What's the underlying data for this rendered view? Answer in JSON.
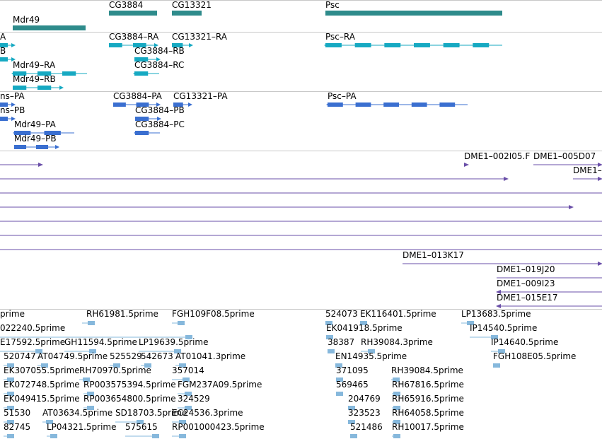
{
  "colors": {
    "gene": "#2e8b8b",
    "mrna_flybase": "#16a9c2",
    "mrna_refseq": "#3a6fd0",
    "bac": "#6a4fa8",
    "est": "#86b8dc",
    "divider": "#c8c8c8"
  },
  "tracks": {
    "genes": {
      "features": [
        {
          "label": "CG3884",
          "icon": "box-glyph"
        },
        {
          "label": "CG13321",
          "icon": "box-glyph"
        },
        {
          "label": "Mdr49",
          "icon": "box-glyph"
        },
        {
          "label": "Psc",
          "icon": "box-glyph"
        }
      ]
    },
    "flybase_transcripts": {
      "features": [
        {
          "label": "A",
          "icon": "transcript-glyph"
        },
        {
          "label": "CG3884–RA",
          "icon": "transcript-glyph"
        },
        {
          "label": "CG13321–RA",
          "icon": "transcript-glyph"
        },
        {
          "label": "Psc–RA",
          "icon": "transcript-glyph"
        },
        {
          "label": "B",
          "icon": "transcript-glyph"
        },
        {
          "label": "CG3884–RB",
          "icon": "transcript-glyph"
        },
        {
          "label": "Mdr49–RA",
          "icon": "transcript-glyph"
        },
        {
          "label": "CG3884–RC",
          "icon": "transcript-glyph"
        },
        {
          "label": "Mdr49–RB",
          "icon": "transcript-glyph"
        }
      ]
    },
    "refseq_transcripts": {
      "features": [
        {
          "label": "ns–PA",
          "icon": "transcript-glyph"
        },
        {
          "label": "CG3884–PA",
          "icon": "transcript-glyph"
        },
        {
          "label": "CG13321–PA",
          "icon": "transcript-glyph"
        },
        {
          "label": "Psc–PA",
          "icon": "transcript-glyph"
        },
        {
          "label": "ns–PB",
          "icon": "transcript-glyph"
        },
        {
          "label": "CG3884–PB",
          "icon": "transcript-glyph"
        },
        {
          "label": "Mdr49–PA",
          "icon": "transcript-glyph"
        },
        {
          "label": "CG3884–PC",
          "icon": "transcript-glyph"
        },
        {
          "label": "Mdr49–PB",
          "icon": "transcript-glyph"
        }
      ]
    },
    "bac_clones": {
      "features": [
        {
          "label": "",
          "icon": "arrow-right-glyph"
        },
        {
          "label": "DME1–002I05.F",
          "icon": "arrow-right-glyph"
        },
        {
          "label": "DME1–005D07",
          "icon": "arrow-right-glyph"
        },
        {
          "label": "",
          "icon": "arrow-right-glyph"
        },
        {
          "label": "DME1–",
          "icon": "arrow-right-glyph"
        },
        {
          "label": "",
          "icon": "line-glyph"
        },
        {
          "label": "",
          "icon": "arrow-right-glyph"
        },
        {
          "label": "",
          "icon": "line-glyph"
        },
        {
          "label": "",
          "icon": "line-glyph"
        },
        {
          "label": "",
          "icon": "line-glyph"
        },
        {
          "label": "DME1–013K17",
          "icon": "arrow-right-glyph"
        },
        {
          "label": "DME1–019J20",
          "icon": "line-glyph"
        },
        {
          "label": "DME1–009I23",
          "icon": "arrow-left-glyph"
        },
        {
          "label": "DME1–015E17",
          "icon": "arrow-left-glyph"
        }
      ]
    },
    "est_clones": {
      "features": [
        {
          "label": "prime",
          "icon": "est-glyph"
        },
        {
          "label": "RH61981.5prime",
          "icon": "est-glyph"
        },
        {
          "label": "FGH109F08.5prime",
          "icon": "est-glyph"
        },
        {
          "label": "524073",
          "icon": "est-glyph"
        },
        {
          "label": "EK116401.5prime",
          "icon": "est-glyph"
        },
        {
          "label": "LP13683.5prime",
          "icon": "est-glyph"
        },
        {
          "label": "022240.5prime",
          "icon": "est-glyph"
        },
        {
          "label": "EK041918.5prime",
          "icon": "est-glyph"
        },
        {
          "label": "IP14540.5prime",
          "icon": "est-glyph"
        },
        {
          "label": "E17592.5prime",
          "icon": "est-glyph"
        },
        {
          "label": "GH11594.5prime",
          "icon": "est-glyph"
        },
        {
          "label": "LP19639.5prime",
          "icon": "est-glyph"
        },
        {
          "label": "38387",
          "icon": "est-glyph"
        },
        {
          "label": "RH39084.3prime",
          "icon": "est-glyph"
        },
        {
          "label": "IP14640.5prime",
          "icon": "est-glyph"
        },
        {
          "label": "520747",
          "icon": "est-glyph"
        },
        {
          "label": "AT04749.5prime",
          "icon": "est-glyph"
        },
        {
          "label": "525529",
          "icon": "est-glyph"
        },
        {
          "label": "542673",
          "icon": "est-glyph"
        },
        {
          "label": "AT01041.3prime",
          "icon": "est-glyph"
        },
        {
          "label": "EN14935.5prime",
          "icon": "est-glyph"
        },
        {
          "label": "FGH108E05.5prime",
          "icon": "est-glyph"
        },
        {
          "label": "EK307055.5prime",
          "icon": "est-glyph"
        },
        {
          "label": "RH70970.5prime",
          "icon": "est-glyph"
        },
        {
          "label": "357014",
          "icon": "est-glyph"
        },
        {
          "label": "371095",
          "icon": "est-glyph"
        },
        {
          "label": "RH39084.5prime",
          "icon": "est-glyph"
        },
        {
          "label": "EK072748.5prime",
          "icon": "est-glyph"
        },
        {
          "label": "RP003575394.5prime",
          "icon": "est-glyph"
        },
        {
          "label": "FGM237A09.5prime",
          "icon": "est-glyph"
        },
        {
          "label": "569465",
          "icon": "est-glyph"
        },
        {
          "label": "RH67816.5prime",
          "icon": "est-glyph"
        },
        {
          "label": "EK049415.5prime",
          "icon": "est-glyph"
        },
        {
          "label": "RP003654800.5prime",
          "icon": "est-glyph"
        },
        {
          "label": "324529",
          "icon": "est-glyph"
        },
        {
          "label": "204769",
          "icon": "est-glyph"
        },
        {
          "label": "RH65916.5prime",
          "icon": "est-glyph"
        },
        {
          "label": "51530",
          "icon": "est-glyph"
        },
        {
          "label": "AT03634.5prime",
          "icon": "est-glyph"
        },
        {
          "label": "SD18703.5prime",
          "icon": "est-glyph"
        },
        {
          "label": "EC24536.3prime",
          "icon": "est-glyph"
        },
        {
          "label": "323523",
          "icon": "est-glyph"
        },
        {
          "label": "RH64058.5prime",
          "icon": "est-glyph"
        },
        {
          "label": "82745",
          "icon": "est-glyph"
        },
        {
          "label": "LP04321.5prime",
          "icon": "est-glyph"
        },
        {
          "label": "575615",
          "icon": "est-glyph"
        },
        {
          "label": "RP001000423.5prime",
          "icon": "est-glyph"
        },
        {
          "label": "521486",
          "icon": "est-glyph"
        },
        {
          "label": "RH10017.5prime",
          "icon": "est-glyph"
        }
      ]
    }
  }
}
